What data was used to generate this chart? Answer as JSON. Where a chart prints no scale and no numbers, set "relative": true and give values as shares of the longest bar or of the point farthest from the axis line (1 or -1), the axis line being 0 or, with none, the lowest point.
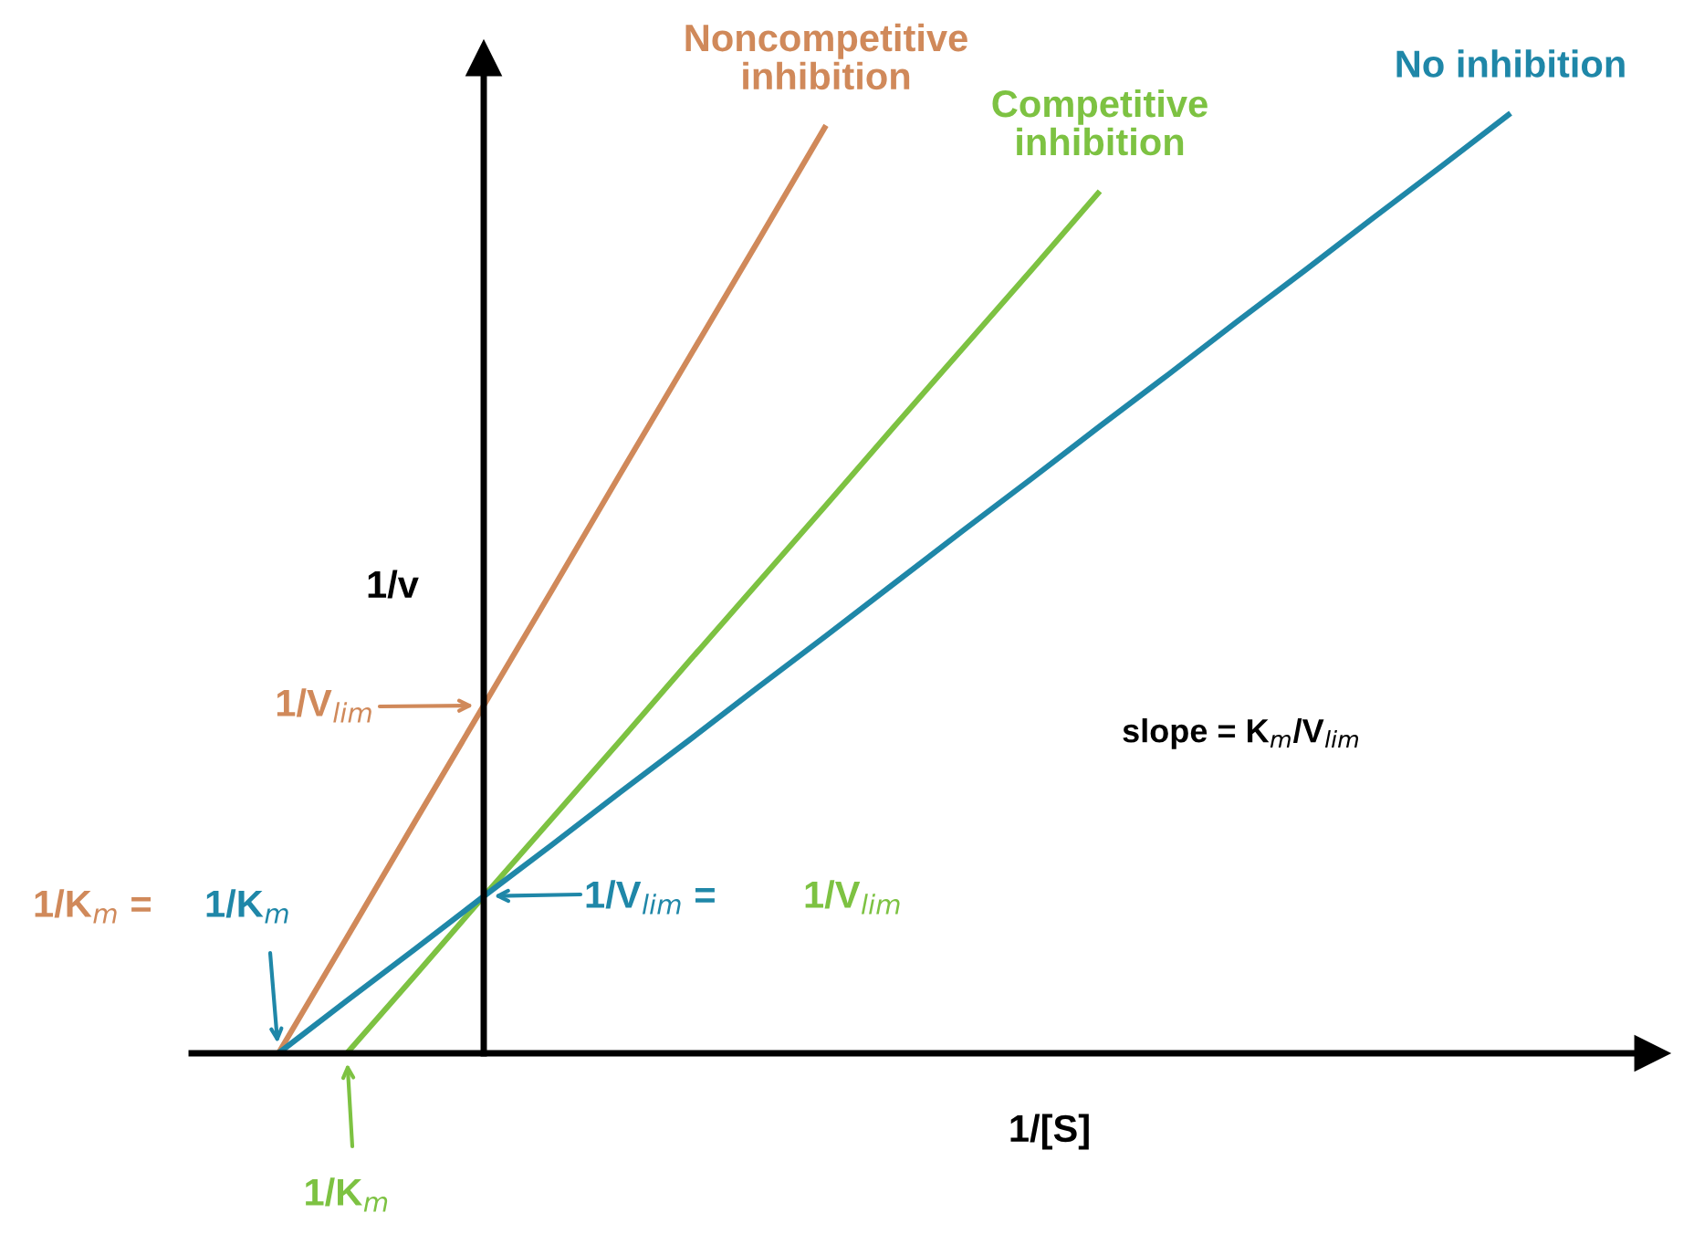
{
  "chart_data": {
    "type": "line",
    "relative": true,
    "xlabel": "1/[S]",
    "ylabel": "1/v",
    "marker": "none",
    "line_style": "solid",
    "categories": [
      null,
      null,
      null,
      null,
      null,
      null,
      null,
      null,
      null,
      null,
      null,
      null,
      null,
      null,
      null,
      null,
      null,
      null,
      null
    ],
    "series": [
      {
        "name": "Noncompetitive\ninhibition",
        "color": "#d0895a",
        "values": [
          0,
          0.123,
          0.247,
          0.37,
          0.493,
          0.617,
          0.74,
          0.863,
          0.987,
          null,
          null,
          null,
          null,
          null,
          null,
          null,
          null,
          null,
          null
        ]
      },
      {
        "name": "Competitive\ninhibition",
        "color": "#7dc242",
        "values": [
          null,
          0,
          0.083,
          0.167,
          0.25,
          0.333,
          0.417,
          0.5,
          0.583,
          0.667,
          0.75,
          0.833,
          0.917,
          null,
          null,
          null,
          null,
          null,
          null
        ]
      },
      {
        "name": "No inhibition",
        "color": "#1f87a8",
        "values": [
          0,
          0.056,
          0.111,
          0.167,
          0.222,
          0.278,
          0.333,
          0.389,
          0.444,
          0.5,
          0.556,
          0.611,
          0.667,
          0.722,
          0.778,
          0.833,
          0.889,
          0.944,
          1.0
        ]
      }
    ],
    "annotations": [
      "1/V$_{lim}$",
      "1/K$_{m}$ =",
      "1/K$_{m}$",
      "1/V$_{lim}$ =",
      "1/V$_{lim}$",
      "1/K$_{m}$",
      "slope = K$_{m}$/V$_{lim}$"
    ]
  }
}
